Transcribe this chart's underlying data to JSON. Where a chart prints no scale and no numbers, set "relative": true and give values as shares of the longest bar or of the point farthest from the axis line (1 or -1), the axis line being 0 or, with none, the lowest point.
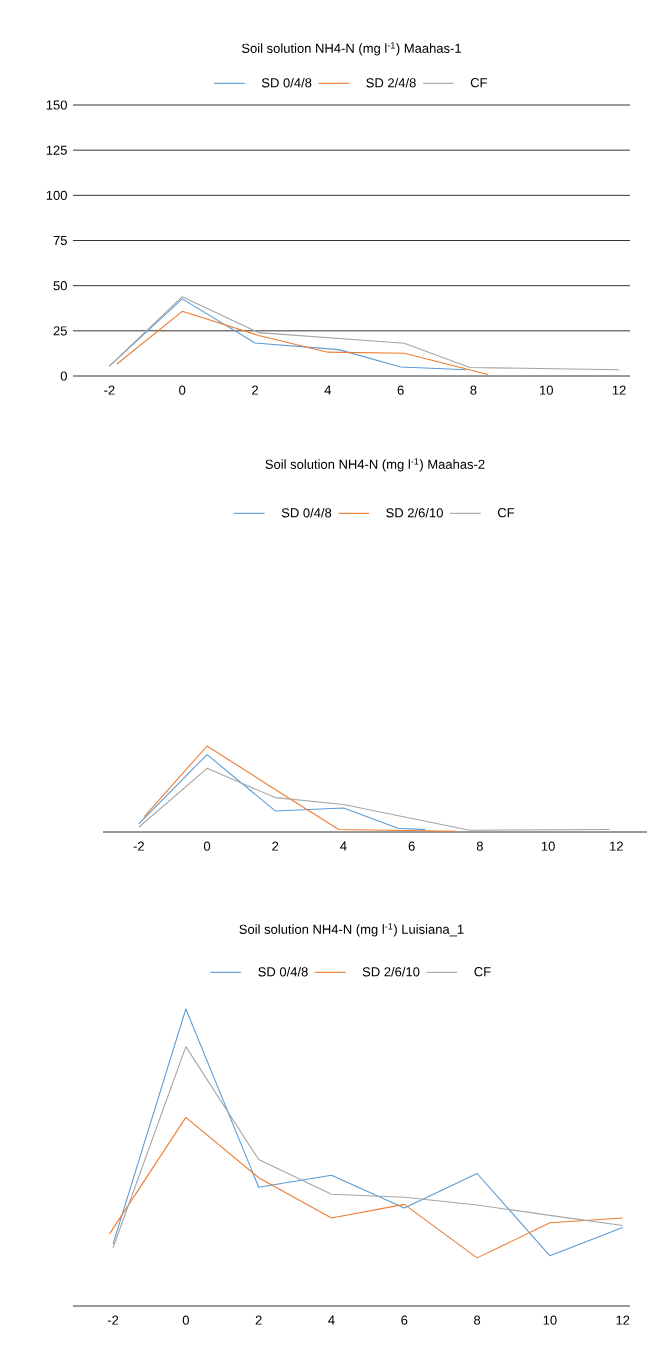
{
  "chart_data": [
    {
      "type": "line",
      "title": "Soil solution NH4-N (mg l$^{-1}$) Maahas-1",
      "legend": "top",
      "grid": "y",
      "xlim": [
        -3,
        12.3
      ],
      "xticks": [
        -2,
        0,
        2,
        4,
        6,
        8,
        10,
        12
      ],
      "ylim": [
        0,
        150
      ],
      "yticks": [
        0,
        25,
        50,
        75,
        100,
        125,
        150
      ],
      "series": [
        {
          "name": "SD 0/4/8",
          "color": "#5b9bd5",
          "x": [
            -2,
            0,
            2,
            4.3,
            6,
            7.8
          ],
          "values": [
            5.5,
            42.7,
            18.3,
            14.6,
            5,
            3.5
          ]
        },
        {
          "name": "SD 2/4/8",
          "color": "#ed7d31",
          "x": [
            -1.8,
            0,
            2.1,
            4,
            6.1,
            8.4
          ],
          "values": [
            6.5,
            35.8,
            22.4,
            13.2,
            12.6,
            0.8
          ]
        },
        {
          "name": "CF",
          "color": "#a5a5a5",
          "x": [
            -2,
            0,
            2.1,
            6.1,
            7.9,
            12
          ],
          "values": [
            5.5,
            43.9,
            24,
            18.1,
            4.7,
            3.5
          ]
        }
      ]
    },
    {
      "type": "line",
      "title": "Soil solution NH4-N (mg l$^{-1}$) Maahas-2",
      "legend": "top",
      "relative": true,
      "xlim": [
        -3.05,
        12.9
      ],
      "xticks": [
        -2,
        0,
        2,
        4,
        6,
        8,
        10,
        12
      ],
      "series": [
        {
          "name": "SD 0/4/8",
          "color": "#5b9bd5",
          "x": [
            -2,
            0,
            2,
            4,
            5.6,
            6.4
          ],
          "values": [
            0.095,
            0.9,
            0.245,
            0.28,
            0.043,
            0.028
          ]
        },
        {
          "name": "SD 2/6/10",
          "color": "#ed7d31",
          "x": [
            -1.84,
            0,
            1.86,
            3.86,
            7.3
          ],
          "values": [
            0.18,
            1,
            0.53,
            0.03,
            0.008
          ]
        },
        {
          "name": "CF",
          "color": "#a5a5a5",
          "x": [
            -2,
            0,
            2,
            4,
            7.7,
            11.8
          ],
          "values": [
            0.055,
            0.74,
            0.4,
            0.32,
            0.02,
            0.03
          ]
        }
      ]
    },
    {
      "type": "line",
      "title": "Soil solution NH4-N (mg l$^{-1}$) Luisiana_1",
      "legend": "top",
      "relative": true,
      "xlim": [
        -3.1,
        12.2
      ],
      "xticks": [
        -2,
        0,
        2,
        4,
        6,
        8,
        10,
        12
      ],
      "series": [
        {
          "name": "SD 0/4/8",
          "color": "#5b9bd5",
          "x": [
            -2,
            0,
            2,
            4,
            6,
            8,
            10,
            12
          ],
          "values": [
            0.209,
            1,
            0.4,
            0.44,
            0.33,
            0.446,
            0.169,
            0.264
          ]
        },
        {
          "name": "SD 2/6/10",
          "color": "#ed7d31",
          "x": [
            -2.1,
            0,
            2,
            4,
            6,
            8,
            10,
            12
          ],
          "values": [
            0.242,
            0.635,
            0.432,
            0.296,
            0.342,
            0.162,
            0.28,
            0.296
          ]
        },
        {
          "name": "CF",
          "color": "#a5a5a5",
          "x": [
            -2,
            0,
            2,
            4,
            6,
            8,
            10,
            12
          ],
          "values": [
            0.196,
            0.873,
            0.493,
            0.376,
            0.366,
            0.34,
            0.305,
            0.271
          ]
        }
      ]
    }
  ]
}
